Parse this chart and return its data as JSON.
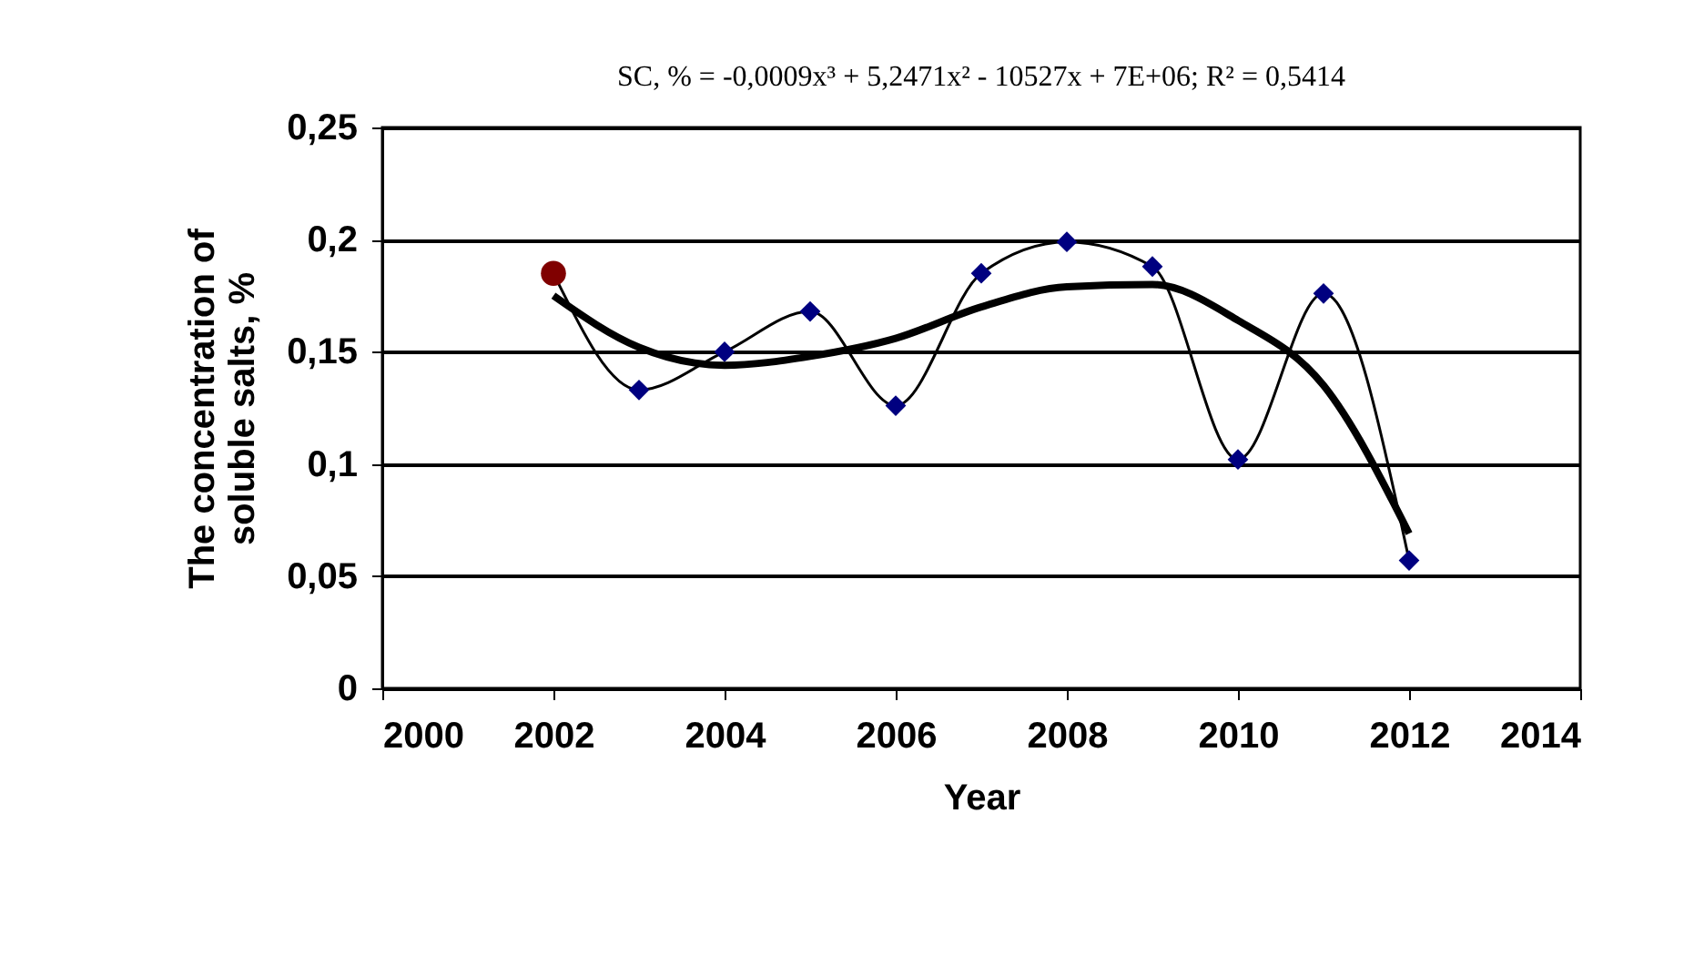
{
  "chart_data": {
    "type": "line",
    "title": "SC, % = -0,0009x³ + 5,2471x² - 10527x + 7E+06; R² = 0,5414",
    "xlabel": "Year",
    "ylabel": "The concentration of\nsoluble salts, %",
    "x": [
      2002,
      2003,
      2004,
      2005,
      2006,
      2007,
      2008,
      2009,
      2010,
      2011,
      2012
    ],
    "series": [
      {
        "color": "#000080",
        "marker": "diamond",
        "values": [
          0.185,
          0.133,
          0.15,
          0.168,
          0.126,
          0.185,
          0.199,
          0.188,
          0.102,
          0.176,
          0.057
        ]
      },
      {
        "color": "#000000",
        "marker": "none",
        "x": [
          2002,
          2003,
          2004,
          2005,
          2006,
          2007,
          2008,
          2009,
          2010,
          2011,
          2012
        ],
        "values": [
          0.175,
          0.152,
          0.144,
          0.148,
          0.156,
          0.17,
          0.179,
          0.18,
          0.164,
          0.135,
          0.069
        ]
      },
      {
        "type": "scatter",
        "color": "#800000",
        "marker": "circle",
        "x": [
          2002
        ],
        "values": [
          0.185
        ]
      }
    ],
    "xlim": [
      2000,
      2014
    ],
    "xticks": [
      2000,
      2002,
      2004,
      2006,
      2008,
      2010,
      2012,
      2014
    ],
    "ylim": [
      0,
      0.25
    ],
    "yticks": [
      {
        "value": 0,
        "label": "0"
      },
      {
        "value": 0.05,
        "label": "0,05"
      },
      {
        "value": 0.1,
        "label": "0,1"
      },
      {
        "value": 0.15,
        "label": "0,15"
      },
      {
        "value": 0.2,
        "label": "0,2"
      },
      {
        "value": 0.25,
        "label": "0,25"
      }
    ],
    "grid": "y"
  }
}
